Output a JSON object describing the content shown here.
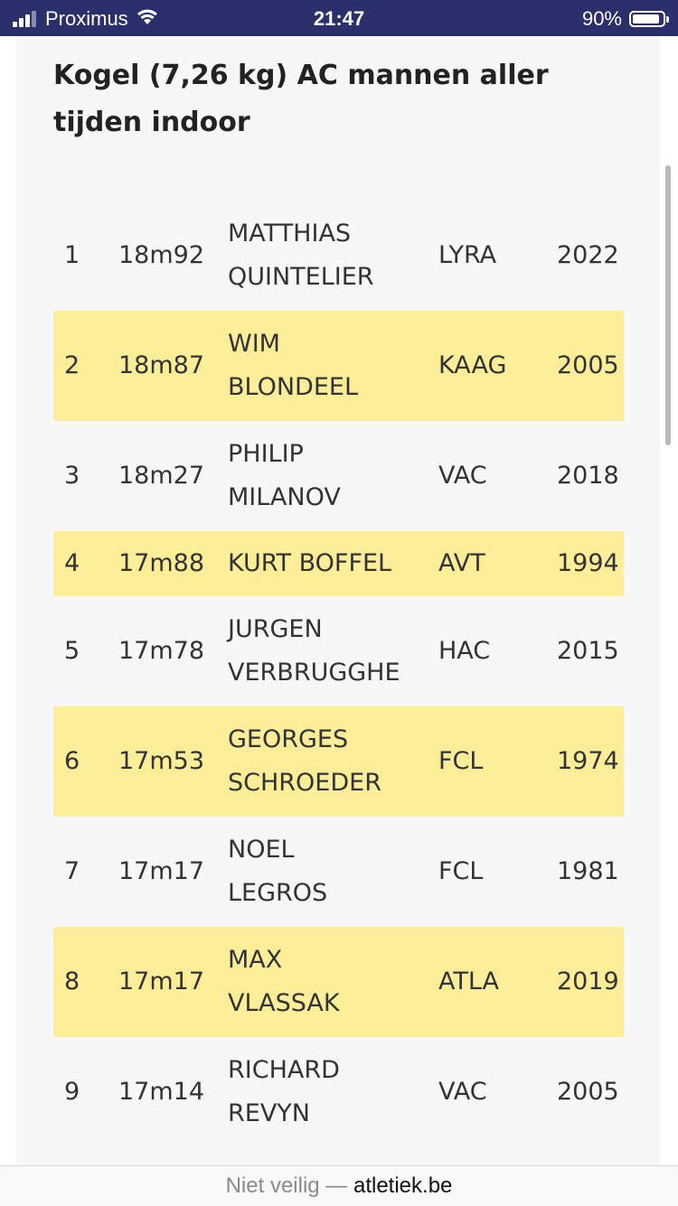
{
  "status_bar": {
    "carrier": "Proximus",
    "time": "21:47",
    "battery": "90%",
    "battery_level": 0.9
  },
  "page": {
    "title": "Kogel (7,26 kg) AC mannen aller tijden indoor"
  },
  "rankings": [
    {
      "rank": "1",
      "performance": "18m92",
      "name_line1": "MATTHIAS",
      "name_line2": "QUINTELIER",
      "club": "LYRA",
      "year": "2022"
    },
    {
      "rank": "2",
      "performance": "18m87",
      "name_line1": "WIM",
      "name_line2": "BLONDEEL",
      "club": "KAAG",
      "year": "2005"
    },
    {
      "rank": "3",
      "performance": "18m27",
      "name_line1": "PHILIP",
      "name_line2": "MILANOV",
      "club": "VAC",
      "year": "2018"
    },
    {
      "rank": "4",
      "performance": "17m88",
      "name_line1": "KURT BOFFEL",
      "name_line2": "",
      "club": "AVT",
      "year": "1994"
    },
    {
      "rank": "5",
      "performance": "17m78",
      "name_line1": "JURGEN",
      "name_line2": "VERBRUGGHE",
      "club": "HAC",
      "year": "2015"
    },
    {
      "rank": "6",
      "performance": "17m53",
      "name_line1": "GEORGES",
      "name_line2": "SCHROEDER",
      "club": "FCL",
      "year": "1974"
    },
    {
      "rank": "7",
      "performance": "17m17",
      "name_line1": "NOEL",
      "name_line2": "LEGROS",
      "club": "FCL",
      "year": "1981"
    },
    {
      "rank": "8",
      "performance": "17m17",
      "name_line1": "MAX",
      "name_line2": "VLASSAK",
      "club": "ATLA",
      "year": "2019"
    },
    {
      "rank": "9",
      "performance": "17m14",
      "name_line1": "RICHARD",
      "name_line2": "REVYN",
      "club": "VAC",
      "year": "2005"
    }
  ],
  "url_bar": {
    "security": "Niet veilig —",
    "domain": "atletiek.be"
  },
  "colors": {
    "status_bar_bg": "#2b2f6b",
    "row_highlight": "#fcee99",
    "page_bg": "#f7f7f7"
  }
}
